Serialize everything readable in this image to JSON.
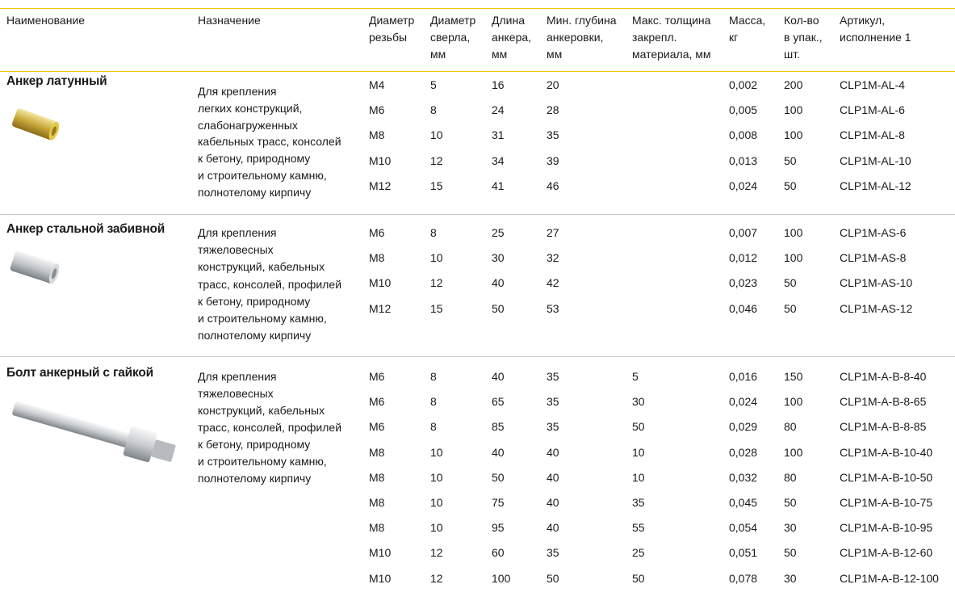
{
  "header": [
    "Наименование",
    "Назначение",
    [
      "Диаметр",
      "резьбы"
    ],
    [
      "Диаметр",
      "сверла,",
      "мм"
    ],
    [
      "Длина",
      "анкера,",
      "мм"
    ],
    [
      "Мин. глубина",
      "анкеровки,",
      "мм"
    ],
    [
      "Макс. толщина",
      "закрепл.",
      "материала, мм"
    ],
    [
      "Масса,",
      "кг"
    ],
    [
      "Кол-во",
      "в упак.,",
      "шт."
    ],
    [
      "Артикул,",
      "исполнение 1"
    ]
  ],
  "groups": [
    {
      "name": "Анкер латунный",
      "purpose": [
        "Для крепления",
        "легких конструкций,",
        "слабонагруженных",
        "кабельных трасс, консолей",
        "к бетону, природному",
        "и строительному камню,",
        "полнотелому кирпичу"
      ],
      "rows": [
        {
          "thread": "M4",
          "drill": "5",
          "length": "16",
          "depth": "20",
          "mass": "0,002",
          "qty": "200",
          "article": "CLP1M-AL-4"
        },
        {
          "thread": "M6",
          "drill": "8",
          "length": "24",
          "depth": "28",
          "mass": "0,005",
          "qty": "100",
          "article": "CLP1M-AL-6"
        },
        {
          "thread": "M8",
          "drill": "10",
          "length": "31",
          "depth": "35",
          "mass": "0,008",
          "qty": "100",
          "article": "CLP1M-AL-8"
        },
        {
          "thread": "M10",
          "drill": "12",
          "length": "34",
          "depth": "39",
          "mass": "0,013",
          "qty": "50",
          "article": "CLP1M-AL-10"
        },
        {
          "thread": "M12",
          "drill": "15",
          "length": "41",
          "depth": "46",
          "mass": "0,024",
          "qty": "50",
          "article": "CLP1M-AL-12"
        }
      ]
    },
    {
      "name": "Анкер стальной забивной",
      "purpose": [
        "Для крепления",
        "тяжеловесных",
        "конструкций, кабельных",
        "трасс, консолей, профилей",
        "к бетону, природному",
        "и строительному камню,",
        "полнотелому кирпичу"
      ],
      "rows": [
        {
          "thread": "M6",
          "drill": "8",
          "length": "25",
          "depth": "27",
          "mass": "0,007",
          "qty": "100",
          "article": "CLP1M-AS-6"
        },
        {
          "thread": "M8",
          "drill": "10",
          "length": "30",
          "depth": "32",
          "mass": "0,012",
          "qty": "100",
          "article": "CLP1M-AS-8"
        },
        {
          "thread": "M10",
          "drill": "12",
          "length": "40",
          "depth": "42",
          "mass": "0,023",
          "qty": "50",
          "article": "CLP1M-AS-10"
        },
        {
          "thread": "M12",
          "drill": "15",
          "length": "50",
          "depth": "53",
          "mass": "0,046",
          "qty": "50",
          "article": "CLP1M-AS-12"
        }
      ]
    },
    {
      "name": "Болт анкерный с гайкой",
      "purpose": [
        "Для крепления",
        "тяжеловесных",
        "конструкций, кабельных",
        "трасс, консолей, профилей",
        "к бетону, природному",
        "и строительному камню,",
        "полнотелому кирпичу"
      ],
      "rows": [
        {
          "thread": "M6",
          "drill": "8",
          "length": "40",
          "depth": "35",
          "thickness": "5",
          "mass": "0,016",
          "qty": "150",
          "article": "CLP1M-A-B-8-40"
        },
        {
          "thread": "M6",
          "drill": "8",
          "length": "65",
          "depth": "35",
          "thickness": "30",
          "mass": "0,024",
          "qty": "100",
          "article": "CLP1M-A-B-8-65"
        },
        {
          "thread": "M6",
          "drill": "8",
          "length": "85",
          "depth": "35",
          "thickness": "50",
          "mass": "0,029",
          "qty": "80",
          "article": "CLP1M-A-B-8-85"
        },
        {
          "thread": "M8",
          "drill": "10",
          "length": "40",
          "depth": "40",
          "thickness": "10",
          "mass": "0,028",
          "qty": "100",
          "article": "CLP1M-A-B-10-40"
        },
        {
          "thread": "M8",
          "drill": "10",
          "length": "50",
          "depth": "40",
          "thickness": "10",
          "mass": "0,032",
          "qty": "80",
          "article": "CLP1M-A-B-10-50"
        },
        {
          "thread": "M8",
          "drill": "10",
          "length": "75",
          "depth": "40",
          "thickness": "35",
          "mass": "0,045",
          "qty": "50",
          "article": "CLP1M-A-B-10-75"
        },
        {
          "thread": "M8",
          "drill": "10",
          "length": "95",
          "depth": "40",
          "thickness": "55",
          "mass": "0,054",
          "qty": "30",
          "article": "CLP1M-A-B-10-95"
        },
        {
          "thread": "M10",
          "drill": "12",
          "length": "60",
          "depth": "35",
          "thickness": "25",
          "mass": "0,051",
          "qty": "50",
          "article": "CLP1M-A-B-12-60"
        },
        {
          "thread": "M10",
          "drill": "12",
          "length": "100",
          "depth": "50",
          "thickness": "50",
          "mass": "0,078",
          "qty": "30",
          "article": "CLP1M-A-B-12-100"
        }
      ]
    }
  ]
}
